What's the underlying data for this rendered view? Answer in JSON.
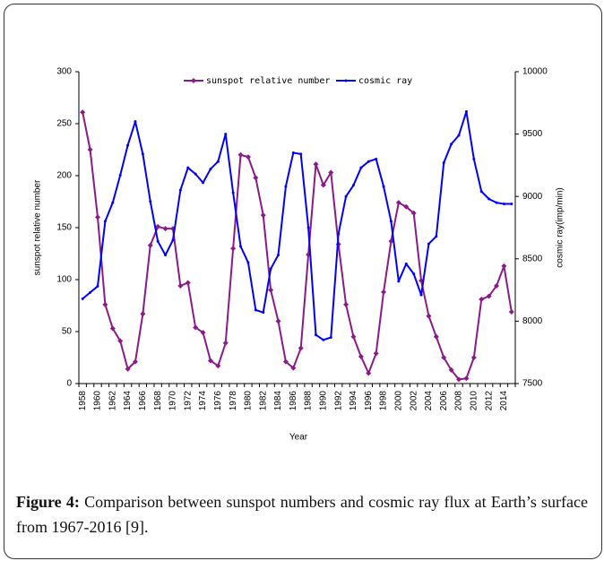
{
  "chart_data": {
    "type": "line",
    "categories": [
      "1958",
      null,
      "1960",
      null,
      "1962",
      null,
      "1964",
      null,
      "1966",
      null,
      "1968",
      null,
      "1970",
      null,
      "1972",
      null,
      "1974",
      null,
      "1976",
      null,
      "1978",
      null,
      "1980",
      null,
      "1982",
      null,
      "1984",
      null,
      "1986",
      null,
      "1988",
      null,
      "1990",
      null,
      "1992",
      null,
      "1994",
      null,
      "1996",
      null,
      "1998",
      null,
      "2000",
      null,
      "2002",
      null,
      "2004",
      null,
      "2006",
      null,
      "2008",
      null,
      "2010",
      null,
      "2012",
      null,
      "2014",
      null
    ],
    "x_label": "Year",
    "y_label": "sunspot relative number",
    "y2_label": "cosmic ray(imp/min)",
    "ylim": [
      0,
      300
    ],
    "yticks": [
      0,
      50,
      100,
      150,
      200,
      250,
      300
    ],
    "y2lim": [
      7500,
      10000
    ],
    "y2ticks": [
      7500,
      8000,
      8500,
      9000,
      9500,
      10000
    ],
    "grid": false,
    "legend": "top",
    "series": [
      {
        "name": "sunspot relative number",
        "color": "#8b1a89",
        "marker": "diamond",
        "values": [
          261,
          225,
          160,
          76,
          53,
          41,
          14,
          21,
          67,
          133,
          151,
          149,
          149,
          94,
          97,
          54,
          49,
          22,
          17,
          39,
          130,
          220,
          218,
          198,
          162,
          90,
          60,
          21,
          15,
          34,
          124,
          211,
          191,
          203,
          134,
          76,
          45,
          26,
          10,
          29,
          88,
          137,
          174,
          170,
          164,
          99,
          65,
          45,
          25,
          13,
          4,
          5,
          25,
          81,
          84,
          94,
          113,
          69
        ]
      },
      {
        "name": "cosmic ray",
        "color": "#0000ff",
        "marker": "dot",
        "axis": "y2",
        "values": [
          8180,
          8230,
          8280,
          8800,
          8950,
          9170,
          9410,
          9600,
          9340,
          8960,
          8640,
          8530,
          8650,
          9050,
          9230,
          9180,
          9110,
          9220,
          9280,
          9500,
          9030,
          8600,
          8470,
          8090,
          8070,
          8420,
          8530,
          9080,
          9350,
          9340,
          8750,
          7890,
          7850,
          7870,
          8700,
          9000,
          9090,
          9230,
          9280,
          9300,
          9080,
          8800,
          8320,
          8460,
          8380,
          8210,
          8620,
          8680,
          9270,
          9420,
          9490,
          9680,
          9300,
          9040,
          8980,
          8950,
          8940,
          8940
        ]
      }
    ]
  },
  "caption": {
    "label": "Figure 4:",
    "text": "Comparison between sunspot numbers and cosmic ray flux at Earth’s surface from 1967-2016 [9]."
  }
}
